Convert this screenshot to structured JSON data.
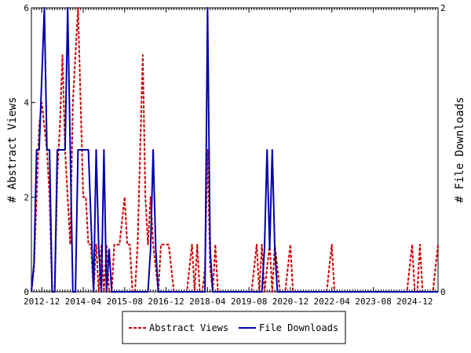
{
  "chart_data": {
    "type": "line",
    "x_tick_labels": [
      "2012-12",
      "2014-04",
      "2015-08",
      "2016-12",
      "2018-04",
      "2019-08",
      "2020-12",
      "2022-04",
      "2023-08",
      "2024-12"
    ],
    "x_range": [
      "2012-08",
      "2025-09"
    ],
    "y_left": {
      "label": "# Abstract Views",
      "ylim": [
        0,
        6
      ],
      "ticks": [
        0,
        2,
        4,
        6
      ]
    },
    "y_right": {
      "label": "# File Downloads",
      "ylim": [
        0,
        2
      ],
      "ticks": [
        0,
        2
      ]
    },
    "legend_placement": "bottom-center",
    "grid": false,
    "series": [
      {
        "name": "Abstract Views",
        "axis": "left",
        "color": "#cc0000",
        "style": "dashed",
        "points": [
          [
            "2012-08",
            0
          ],
          [
            "2012-09",
            0.5
          ],
          [
            "2012-10",
            2
          ],
          [
            "2012-11",
            3.5
          ],
          [
            "2012-12",
            4
          ],
          [
            "2013-01",
            3.5
          ],
          [
            "2013-02",
            3
          ],
          [
            "2013-03",
            2
          ],
          [
            "2013-04",
            0
          ],
          [
            "2013-05",
            0
          ],
          [
            "2013-06",
            2.5
          ],
          [
            "2013-07",
            3.5
          ],
          [
            "2013-08",
            5
          ],
          [
            "2013-09",
            3
          ],
          [
            "2013-10",
            2
          ],
          [
            "2013-11",
            1
          ],
          [
            "2013-12",
            4
          ],
          [
            "2014-01",
            5
          ],
          [
            "2014-02",
            6
          ],
          [
            "2014-03",
            4
          ],
          [
            "2014-04",
            2
          ],
          [
            "2014-05",
            2
          ],
          [
            "2014-06",
            1
          ],
          [
            "2014-07",
            1
          ],
          [
            "2014-08",
            0
          ],
          [
            "2014-09",
            1
          ],
          [
            "2014-10",
            0
          ],
          [
            "2014-11",
            1
          ],
          [
            "2014-12",
            0
          ],
          [
            "2015-01",
            1
          ],
          [
            "2015-02",
            0
          ],
          [
            "2015-03",
            0
          ],
          [
            "2015-04",
            1
          ],
          [
            "2015-05",
            1
          ],
          [
            "2015-06",
            1
          ],
          [
            "2015-07",
            1.5
          ],
          [
            "2015-08",
            2
          ],
          [
            "2015-09",
            1
          ],
          [
            "2015-10",
            1
          ],
          [
            "2015-11",
            0
          ],
          [
            "2015-12",
            0
          ],
          [
            "2016-01",
            1
          ],
          [
            "2016-02",
            3
          ],
          [
            "2016-03",
            5
          ],
          [
            "2016-04",
            2
          ],
          [
            "2016-05",
            1
          ],
          [
            "2016-06",
            2
          ],
          [
            "2016-07",
            1
          ],
          [
            "2016-08",
            0.5
          ],
          [
            "2016-09",
            0
          ],
          [
            "2016-10",
            1
          ],
          [
            "2016-11",
            1
          ],
          [
            "2016-12",
            1
          ],
          [
            "2017-01",
            1
          ],
          [
            "2017-02",
            0.5
          ],
          [
            "2017-03",
            0
          ],
          [
            "2017-04",
            0
          ],
          [
            "2017-05",
            0
          ],
          [
            "2017-06",
            0
          ],
          [
            "2017-07",
            0
          ],
          [
            "2017-08",
            0
          ],
          [
            "2017-09",
            0.5
          ],
          [
            "2017-10",
            1
          ],
          [
            "2017-11",
            0
          ],
          [
            "2017-12",
            1
          ],
          [
            "2018-01",
            0
          ],
          [
            "2018-02",
            0
          ],
          [
            "2018-03",
            0.5
          ],
          [
            "2018-04",
            3
          ],
          [
            "2018-05",
            0.5
          ],
          [
            "2018-06",
            0
          ],
          [
            "2018-07",
            1
          ],
          [
            "2018-08",
            0
          ],
          [
            "2018-09",
            0
          ],
          [
            "2018-10",
            0
          ],
          [
            "2018-11",
            0
          ],
          [
            "2018-12",
            0
          ],
          [
            "2019-01",
            0
          ],
          [
            "2019-02",
            0
          ],
          [
            "2019-03",
            0
          ],
          [
            "2019-04",
            0
          ],
          [
            "2019-05",
            0
          ],
          [
            "2019-06",
            0
          ],
          [
            "2019-07",
            0
          ],
          [
            "2019-08",
            0
          ],
          [
            "2019-09",
            0
          ],
          [
            "2019-10",
            0.5
          ],
          [
            "2019-11",
            1
          ],
          [
            "2019-12",
            0
          ],
          [
            "2020-01",
            1
          ],
          [
            "2020-02",
            0
          ],
          [
            "2020-03",
            0.5
          ],
          [
            "2020-04",
            1
          ],
          [
            "2020-05",
            0
          ],
          [
            "2020-06",
            1
          ],
          [
            "2020-07",
            0.5
          ],
          [
            "2020-08",
            0
          ],
          [
            "2020-09",
            0
          ],
          [
            "2020-10",
            0
          ],
          [
            "2020-11",
            0.5
          ],
          [
            "2020-12",
            1
          ],
          [
            "2021-01",
            0
          ],
          [
            "2021-02",
            0
          ],
          [
            "2021-03",
            0
          ],
          [
            "2021-04",
            0
          ],
          [
            "2021-05",
            0
          ],
          [
            "2021-06",
            0
          ],
          [
            "2021-07",
            0
          ],
          [
            "2021-08",
            0
          ],
          [
            "2021-09",
            0
          ],
          [
            "2021-10",
            0
          ],
          [
            "2021-11",
            0
          ],
          [
            "2021-12",
            0
          ],
          [
            "2022-01",
            0
          ],
          [
            "2022-02",
            0
          ],
          [
            "2022-03",
            0.5
          ],
          [
            "2022-04",
            1
          ],
          [
            "2022-05",
            0
          ],
          [
            "2022-06",
            0
          ],
          [
            "2022-07",
            0
          ],
          [
            "2022-08",
            0
          ],
          [
            "2022-09",
            0
          ],
          [
            "2022-10",
            0
          ],
          [
            "2022-11",
            0
          ],
          [
            "2022-12",
            0
          ],
          [
            "2023-01",
            0
          ],
          [
            "2023-02",
            0
          ],
          [
            "2023-03",
            0
          ],
          [
            "2023-04",
            0
          ],
          [
            "2023-05",
            0
          ],
          [
            "2023-06",
            0
          ],
          [
            "2023-07",
            0
          ],
          [
            "2023-08",
            0
          ],
          [
            "2023-09",
            0
          ],
          [
            "2023-10",
            0
          ],
          [
            "2023-11",
            0
          ],
          [
            "2023-12",
            0
          ],
          [
            "2024-01",
            0
          ],
          [
            "2024-02",
            0
          ],
          [
            "2024-03",
            0
          ],
          [
            "2024-04",
            0
          ],
          [
            "2024-05",
            0
          ],
          [
            "2024-06",
            0
          ],
          [
            "2024-07",
            0
          ],
          [
            "2024-08",
            0
          ],
          [
            "2024-09",
            0
          ],
          [
            "2024-10",
            0.5
          ],
          [
            "2024-11",
            1
          ],
          [
            "2024-12",
            0
          ],
          [
            "2025-01",
            0
          ],
          [
            "2025-02",
            1
          ],
          [
            "2025-03",
            0
          ],
          [
            "2025-04",
            0
          ],
          [
            "2025-05",
            0
          ],
          [
            "2025-06",
            0
          ],
          [
            "2025-07",
            0
          ],
          [
            "2025-08",
            0.5
          ],
          [
            "2025-09",
            1
          ]
        ]
      },
      {
        "name": "File Downloads",
        "axis": "right",
        "color": "#0000aa",
        "style": "solid",
        "points": [
          [
            "2012-08",
            0
          ],
          [
            "2012-09",
            0.2
          ],
          [
            "2012-10",
            1
          ],
          [
            "2012-11",
            1
          ],
          [
            "2012-12",
            1.5
          ],
          [
            "2013-01",
            2
          ],
          [
            "2013-02",
            1
          ],
          [
            "2013-03",
            1
          ],
          [
            "2013-04",
            0
          ],
          [
            "2013-05",
            0
          ],
          [
            "2013-06",
            1
          ],
          [
            "2013-07",
            1
          ],
          [
            "2013-08",
            1
          ],
          [
            "2013-09",
            1
          ],
          [
            "2013-10",
            2
          ],
          [
            "2013-11",
            1
          ],
          [
            "2013-12",
            0
          ],
          [
            "2014-01",
            0
          ],
          [
            "2014-02",
            1
          ],
          [
            "2014-03",
            1
          ],
          [
            "2014-04",
            1
          ],
          [
            "2014-05",
            1
          ],
          [
            "2014-06",
            1
          ],
          [
            "2014-07",
            0.5
          ],
          [
            "2014-08",
            0
          ],
          [
            "2014-09",
            1
          ],
          [
            "2014-10",
            0.3
          ],
          [
            "2014-11",
            0
          ],
          [
            "2014-12",
            1
          ],
          [
            "2015-01",
            0
          ],
          [
            "2015-02",
            0.3
          ],
          [
            "2015-03",
            0
          ],
          [
            "2015-04",
            0
          ],
          [
            "2015-05",
            0
          ],
          [
            "2015-06",
            0
          ],
          [
            "2015-07",
            0
          ],
          [
            "2015-08",
            0
          ],
          [
            "2015-09",
            0
          ],
          [
            "2015-10",
            0
          ],
          [
            "2015-11",
            0
          ],
          [
            "2015-12",
            0
          ],
          [
            "2016-01",
            0
          ],
          [
            "2016-02",
            0
          ],
          [
            "2016-03",
            0
          ],
          [
            "2016-04",
            0
          ],
          [
            "2016-05",
            0
          ],
          [
            "2016-06",
            0.3
          ],
          [
            "2016-07",
            1
          ],
          [
            "2016-08",
            0.3
          ],
          [
            "2016-09",
            0
          ],
          [
            "2016-10",
            0
          ],
          [
            "2016-11",
            0
          ],
          [
            "2016-12",
            0
          ],
          [
            "2017-01",
            0
          ],
          [
            "2017-02",
            0
          ],
          [
            "2017-03",
            0
          ],
          [
            "2017-04",
            0
          ],
          [
            "2017-05",
            0
          ],
          [
            "2017-06",
            0
          ],
          [
            "2017-07",
            0
          ],
          [
            "2017-08",
            0
          ],
          [
            "2017-09",
            0
          ],
          [
            "2017-10",
            0
          ],
          [
            "2017-11",
            0
          ],
          [
            "2017-12",
            0
          ],
          [
            "2018-01",
            0
          ],
          [
            "2018-02",
            0
          ],
          [
            "2018-03",
            0
          ],
          [
            "2018-04",
            2
          ],
          [
            "2018-05",
            0.3
          ],
          [
            "2018-06",
            0
          ],
          [
            "2018-07",
            0
          ],
          [
            "2018-08",
            0
          ],
          [
            "2018-09",
            0
          ],
          [
            "2018-10",
            0
          ],
          [
            "2018-11",
            0
          ],
          [
            "2018-12",
            0
          ],
          [
            "2019-01",
            0
          ],
          [
            "2019-02",
            0
          ],
          [
            "2019-03",
            0
          ],
          [
            "2019-04",
            0
          ],
          [
            "2019-05",
            0
          ],
          [
            "2019-06",
            0
          ],
          [
            "2019-07",
            0
          ],
          [
            "2019-08",
            0
          ],
          [
            "2019-09",
            0
          ],
          [
            "2019-10",
            0
          ],
          [
            "2019-11",
            0
          ],
          [
            "2019-12",
            0
          ],
          [
            "2020-01",
            0
          ],
          [
            "2020-02",
            0.3
          ],
          [
            "2020-03",
            1
          ],
          [
            "2020-04",
            0.3
          ],
          [
            "2020-05",
            1
          ],
          [
            "2020-06",
            0.3
          ],
          [
            "2020-07",
            0
          ],
          [
            "2020-08",
            0
          ],
          [
            "2020-09",
            0
          ],
          [
            "2020-10",
            0
          ],
          [
            "2020-11",
            0
          ],
          [
            "2020-12",
            0
          ],
          [
            "2021-06",
            0
          ],
          [
            "2022-06",
            0
          ],
          [
            "2023-06",
            0
          ],
          [
            "2024-06",
            0
          ],
          [
            "2025-09",
            0
          ]
        ]
      }
    ]
  }
}
